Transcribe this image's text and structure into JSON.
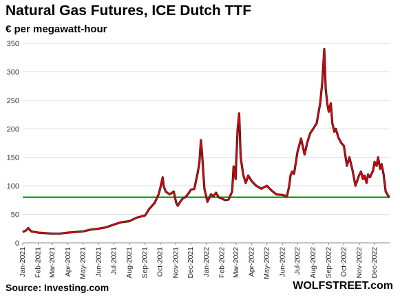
{
  "header": {
    "title": "Natural Gas Futures, ICE Dutch TTF",
    "subtitle": "€ per megawatt-hour"
  },
  "footer": {
    "source": "Source: Investing.com",
    "brand": "WOLFSTREET.com"
  },
  "colors": {
    "line_red": "#e8000b",
    "line_dark": "#3a1a1a",
    "reference_line": "#22a33a",
    "grid": "#d9d9d9"
  },
  "chart_data": {
    "type": "line",
    "title": "Natural Gas Futures, ICE Dutch TTF",
    "ylabel": "€ per megawatt-hour",
    "xlabel": "",
    "ylim": [
      0,
      350
    ],
    "yticks": [
      0,
      50,
      100,
      150,
      200,
      250,
      300,
      350
    ],
    "grid": "horizontal",
    "legend": "none",
    "x_tick_labels": [
      "Jan-2021",
      "Feb-2021",
      "Mar-2021",
      "Apr-2021",
      "May-2021",
      "Jun-2021",
      "Jul-2021",
      "Aug-2021",
      "Sep-2021",
      "Oct-2021",
      "Nov-2021",
      "Dec-2021",
      "Jan-2022",
      "Feb-2022",
      "Mar-2022",
      "Apr-2022",
      "May-2022",
      "Jun-2022",
      "Jul-2022",
      "Aug-2022",
      "Sep-2022",
      "Oct-2022",
      "Nov-2022",
      "Dec-2022"
    ],
    "reference_line": {
      "y": 80,
      "color": "#22a33a"
    },
    "series": [
      {
        "x": [
          "2021-01-01",
          "2021-01-08",
          "2021-01-12",
          "2021-01-18",
          "2021-02-01",
          "2021-02-15",
          "2021-03-01",
          "2021-03-15",
          "2021-04-01",
          "2021-04-15",
          "2021-05-01",
          "2021-05-15",
          "2021-06-01",
          "2021-06-15",
          "2021-07-01",
          "2021-07-15",
          "2021-08-01",
          "2021-08-15",
          "2021-09-01",
          "2021-09-10",
          "2021-09-20",
          "2021-09-28",
          "2021-10-01",
          "2021-10-06",
          "2021-10-08",
          "2021-10-12",
          "2021-10-20",
          "2021-10-28",
          "2021-11-02",
          "2021-11-05",
          "2021-11-10",
          "2021-11-15",
          "2021-11-20",
          "2021-11-25",
          "2021-12-01",
          "2021-12-08",
          "2021-12-14",
          "2021-12-18",
          "2021-12-21",
          "2021-12-23",
          "2021-12-28",
          "2022-01-03",
          "2022-01-10",
          "2022-01-15",
          "2022-01-20",
          "2022-01-25",
          "2022-01-31",
          "2022-02-07",
          "2022-02-14",
          "2022-02-21",
          "2022-02-24",
          "2022-02-28",
          "2022-03-01",
          "2022-03-04",
          "2022-03-07",
          "2022-03-10",
          "2022-03-15",
          "2022-03-20",
          "2022-03-25",
          "2022-04-01",
          "2022-04-10",
          "2022-04-20",
          "2022-05-01",
          "2022-05-10",
          "2022-05-20",
          "2022-06-01",
          "2022-06-10",
          "2022-06-14",
          "2022-06-17",
          "2022-06-20",
          "2022-06-24",
          "2022-07-01",
          "2022-07-08",
          "2022-07-15",
          "2022-07-20",
          "2022-07-26",
          "2022-08-01",
          "2022-08-08",
          "2022-08-15",
          "2022-08-19",
          "2022-08-23",
          "2022-08-26",
          "2022-08-29",
          "2022-09-01",
          "2022-09-05",
          "2022-09-08",
          "2022-09-12",
          "2022-09-15",
          "2022-09-20",
          "2022-09-26",
          "2022-10-01",
          "2022-10-07",
          "2022-10-12",
          "2022-10-18",
          "2022-10-24",
          "2022-10-31",
          "2022-11-04",
          "2022-11-08",
          "2022-11-11",
          "2022-11-15",
          "2022-11-18",
          "2022-11-22",
          "2022-11-28",
          "2022-12-01",
          "2022-12-05",
          "2022-12-08",
          "2022-12-12",
          "2022-12-15",
          "2022-12-19",
          "2022-12-21",
          "2022-12-23",
          "2022-12-27",
          "2022-12-30"
        ],
        "y": [
          19,
          22,
          26,
          20,
          18,
          17,
          16,
          16,
          18,
          19,
          20,
          23,
          25,
          27,
          32,
          36,
          38,
          44,
          48,
          60,
          70,
          85,
          95,
          115,
          100,
          90,
          85,
          90,
          70,
          65,
          72,
          78,
          80,
          85,
          93,
          95,
          120,
          140,
          180,
          160,
          95,
          72,
          85,
          82,
          88,
          80,
          78,
          75,
          76,
          90,
          134,
          112,
          140,
          200,
          227,
          150,
          120,
          105,
          118,
          108,
          100,
          95,
          100,
          92,
          85,
          84,
          82,
          98,
          118,
          125,
          121,
          160,
          183,
          155,
          175,
          192,
          200,
          210,
          245,
          280,
          340,
          270,
          245,
          230,
          245,
          210,
          195,
          200,
          185,
          175,
          170,
          135,
          150,
          128,
          100,
          118,
          125,
          112,
          118,
          105,
          120,
          115,
          127,
          142,
          135,
          150,
          130,
          138,
          120,
          105,
          90,
          84,
          80
        ]
      }
    ]
  }
}
